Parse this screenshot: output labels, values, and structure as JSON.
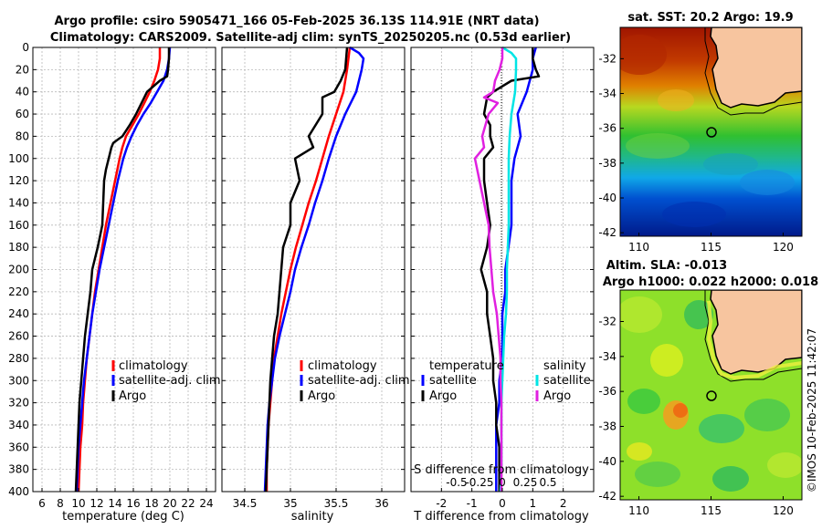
{
  "header": {
    "title_line1": "Argo profile: csiro 5905471_166 05-Feb-2025 36.13S 114.91E (NRT data)",
    "title_line2": "Climatology: CARS2009. Satellite-adj clim: synTS_20250205.nc (0.53d earlier)"
  },
  "footer": {
    "credit": "©IMOS 10-Feb-2025 11:42:07"
  },
  "colors": {
    "climatology": "#ff0000",
    "satellite": "#0000ff",
    "argo": "#000000",
    "sat_salinity": "#00e5e5",
    "argo_salinity": "#e020e0",
    "grid": "#b0b0b0",
    "land": "#f7c59f"
  },
  "chart_data": [
    {
      "id": "temperature",
      "type": "line",
      "xlabel": "temperature (deg C)",
      "ylabel": "",
      "xlim": [
        5,
        25
      ],
      "ylim": [
        400,
        0
      ],
      "xticks": [
        6,
        8,
        10,
        12,
        14,
        16,
        18,
        20,
        22,
        24
      ],
      "yticks": [
        0,
        20,
        40,
        60,
        80,
        100,
        120,
        140,
        160,
        180,
        200,
        220,
        240,
        260,
        280,
        300,
        320,
        340,
        360,
        380,
        400
      ],
      "legend": {
        "position": "lower-right",
        "entries": [
          "climatology",
          "satellite-adj. clim",
          "Argo"
        ]
      },
      "series": [
        {
          "name": "climatology",
          "color": "#ff0000",
          "depth": [
            0,
            10,
            20,
            30,
            40,
            50,
            60,
            70,
            80,
            90,
            100,
            120,
            140,
            160,
            180,
            200,
            220,
            240,
            260,
            280,
            300,
            320,
            340,
            360,
            380,
            400
          ],
          "values": [
            18.9,
            18.9,
            18.7,
            18.3,
            17.8,
            17.2,
            16.6,
            15.9,
            15.2,
            14.8,
            14.5,
            14.0,
            13.5,
            13.0,
            12.6,
            12.2,
            11.8,
            11.5,
            11.2,
            10.9,
            10.7,
            10.5,
            10.4,
            10.2,
            10.1,
            10.0
          ]
        },
        {
          "name": "satellite-adj. clim",
          "color": "#0000ff",
          "depth": [
            0,
            10,
            20,
            30,
            40,
            50,
            60,
            70,
            80,
            90,
            100,
            120,
            140,
            160,
            180,
            200,
            220,
            240,
            260,
            280,
            300,
            320,
            340,
            360,
            380,
            400
          ],
          "values": [
            20.0,
            19.9,
            19.7,
            19.3,
            18.6,
            17.9,
            17.1,
            16.4,
            15.8,
            15.3,
            14.9,
            14.3,
            13.8,
            13.3,
            12.8,
            12.3,
            11.9,
            11.5,
            11.2,
            10.9,
            10.6,
            10.4,
            10.2,
            10.0,
            9.9,
            9.8
          ]
        },
        {
          "name": "Argo",
          "color": "#000000",
          "depth": [
            0,
            10,
            20,
            26,
            30,
            40,
            50,
            60,
            70,
            80,
            86,
            90,
            100,
            110,
            120,
            140,
            160,
            180,
            200,
            220,
            240,
            260,
            280,
            300,
            320,
            340,
            360,
            380,
            400
          ],
          "values": [
            19.9,
            19.9,
            19.8,
            19.7,
            18.9,
            17.5,
            16.9,
            16.3,
            15.6,
            14.8,
            13.8,
            13.6,
            13.3,
            13.0,
            12.8,
            12.7,
            12.6,
            12.1,
            11.5,
            11.3,
            11.0,
            10.7,
            10.5,
            10.3,
            10.1,
            10.0,
            9.9,
            9.8,
            9.7
          ]
        }
      ]
    },
    {
      "id": "salinity",
      "type": "line",
      "xlabel": "salinity",
      "ylabel": "",
      "xlim": [
        34.25,
        36.25
      ],
      "ylim": [
        400,
        0
      ],
      "xticks": [
        34.5,
        35,
        35.5,
        36
      ],
      "yticks": [
        0,
        20,
        40,
        60,
        80,
        100,
        120,
        140,
        160,
        180,
        200,
        220,
        240,
        260,
        280,
        300,
        320,
        340,
        360,
        380,
        400
      ],
      "legend": {
        "position": "lower-right",
        "entries": [
          "climatology",
          "satellite-adj. clim",
          "Argo"
        ]
      },
      "series": [
        {
          "name": "climatology",
          "color": "#ff0000",
          "depth": [
            0,
            20,
            40,
            60,
            80,
            100,
            120,
            140,
            160,
            180,
            200,
            220,
            240,
            260,
            280,
            300,
            320,
            340,
            360,
            380,
            400
          ],
          "values": [
            35.65,
            35.62,
            35.58,
            35.5,
            35.42,
            35.35,
            35.28,
            35.2,
            35.13,
            35.06,
            35.0,
            34.95,
            34.9,
            34.86,
            34.82,
            34.8,
            34.78,
            34.76,
            34.75,
            34.74,
            34.74
          ]
        },
        {
          "name": "satellite-adj. clim",
          "color": "#0000ff",
          "depth": [
            0,
            5,
            10,
            20,
            40,
            60,
            80,
            100,
            120,
            140,
            160,
            180,
            200,
            220,
            240,
            260,
            280,
            300,
            320,
            340,
            360,
            380,
            400
          ],
          "values": [
            35.65,
            35.75,
            35.8,
            35.78,
            35.72,
            35.6,
            35.5,
            35.42,
            35.35,
            35.27,
            35.2,
            35.12,
            35.05,
            35.0,
            34.94,
            34.88,
            34.83,
            34.8,
            34.77,
            34.75,
            34.74,
            34.73,
            34.72
          ]
        },
        {
          "name": "Argo",
          "color": "#000000",
          "depth": [
            0,
            20,
            30,
            40,
            45,
            60,
            80,
            90,
            100,
            120,
            140,
            160,
            180,
            200,
            220,
            240,
            260,
            280,
            300,
            320,
            340,
            360,
            380,
            400
          ],
          "values": [
            35.62,
            35.6,
            35.55,
            35.48,
            35.35,
            35.35,
            35.2,
            35.25,
            35.05,
            35.1,
            35.0,
            35.0,
            34.92,
            34.9,
            34.88,
            34.86,
            34.82,
            34.8,
            34.78,
            34.77,
            34.76,
            34.75,
            34.74,
            34.73
          ]
        }
      ]
    },
    {
      "id": "difference",
      "type": "line",
      "xlabel": "T difference from climatology",
      "top_axis_label": "S difference from climatology",
      "xlim": [
        -3,
        3
      ],
      "ylim": [
        400,
        0
      ],
      "xticks": [
        -2,
        -1,
        0,
        1,
        2
      ],
      "xticklabels": [
        "-2",
        "-1",
        "0",
        "1",
        "2"
      ],
      "top_xticks": [
        -0.5,
        -0.25,
        0,
        0.25,
        0.5
      ],
      "top_xticklabels": [
        "-0.5",
        "-0.25",
        "0",
        "0.25",
        "0.5"
      ],
      "top_xlim": [
        -1.0,
        1.0
      ],
      "yticks": [
        0,
        20,
        40,
        60,
        80,
        100,
        120,
        140,
        160,
        180,
        200,
        220,
        240,
        260,
        280,
        300,
        320,
        340,
        360,
        380,
        400
      ],
      "legend": {
        "position": "lower",
        "temperature_header": "temperature",
        "salinity_header": "salinity",
        "temperature_entries": [
          "satellite",
          "Argo"
        ],
        "salinity_entries": [
          "satellite",
          "Argo"
        ]
      },
      "series": [
        {
          "name": "T satellite",
          "color": "#0000ff",
          "axis": "T",
          "depth": [
            0,
            10,
            20,
            40,
            60,
            80,
            100,
            120,
            140,
            160,
            180,
            200,
            220,
            240,
            260,
            280,
            300,
            320,
            340,
            360,
            380,
            400
          ],
          "values": [
            1.1,
            1.0,
            1.0,
            0.8,
            0.5,
            0.6,
            0.4,
            0.3,
            0.3,
            0.3,
            0.2,
            0.1,
            0.1,
            0.0,
            0.0,
            0.0,
            -0.1,
            -0.1,
            -0.2,
            -0.2,
            -0.2,
            -0.2
          ]
        },
        {
          "name": "T Argo",
          "color": "#000000",
          "axis": "T",
          "depth": [
            0,
            10,
            20,
            26,
            30,
            40,
            45,
            60,
            70,
            80,
            90,
            100,
            120,
            140,
            160,
            180,
            200,
            220,
            240,
            260,
            280,
            300,
            320,
            340,
            360,
            380,
            400
          ],
          "values": [
            1.0,
            1.0,
            1.1,
            1.2,
            0.3,
            -0.3,
            -0.5,
            -0.6,
            -0.4,
            -0.4,
            -0.3,
            -0.6,
            -0.6,
            -0.5,
            -0.4,
            -0.5,
            -0.7,
            -0.5,
            -0.5,
            -0.4,
            -0.3,
            -0.3,
            -0.2,
            -0.2,
            -0.1,
            -0.1,
            -0.1
          ]
        },
        {
          "name": "S satellite",
          "color": "#00e5e5",
          "axis": "S",
          "depth": [
            0,
            5,
            10,
            20,
            40,
            60,
            80,
            100,
            120,
            140,
            160,
            180,
            200,
            220,
            240,
            260,
            280,
            300,
            320,
            340,
            360,
            380,
            400
          ],
          "values": [
            0.0,
            0.1,
            0.15,
            0.15,
            0.14,
            0.1,
            0.08,
            0.07,
            0.07,
            0.07,
            0.07,
            0.06,
            0.05,
            0.05,
            0.04,
            0.02,
            0.01,
            0.0,
            -0.01,
            -0.01,
            -0.01,
            -0.01,
            -0.02
          ]
        },
        {
          "name": "S Argo",
          "color": "#e020e0",
          "axis": "S",
          "depth": [
            0,
            10,
            20,
            30,
            40,
            45,
            50,
            60,
            80,
            90,
            100,
            120,
            140,
            160,
            180,
            200,
            220,
            240,
            260,
            280,
            300,
            320,
            340,
            360,
            380,
            400
          ],
          "values": [
            0.0,
            0.0,
            -0.03,
            -0.08,
            -0.1,
            -0.2,
            -0.05,
            -0.15,
            -0.22,
            -0.2,
            -0.3,
            -0.25,
            -0.2,
            -0.15,
            -0.14,
            -0.12,
            -0.1,
            -0.06,
            -0.04,
            -0.02,
            -0.02,
            -0.01,
            -0.01,
            -0.01,
            -0.01,
            -0.01
          ]
        }
      ]
    },
    {
      "id": "sst_map",
      "type": "heatmap",
      "title": "sat. SST: 20.2 Argo: 19.9",
      "xlim": [
        108.7,
        121.3
      ],
      "ylim": [
        -42.2,
        -30.2
      ],
      "xticks": [
        110,
        115,
        120
      ],
      "yticks": [
        -32,
        -34,
        -36,
        -38,
        -40,
        -42
      ],
      "marker": {
        "lon": 114.91,
        "lat": -36.13
      }
    },
    {
      "id": "sla_map",
      "type": "heatmap",
      "title_line1": "Altim. SLA: -0.013",
      "title_line2": "Argo h1000: 0.022 h2000: 0.018",
      "xlim": [
        108.7,
        121.3
      ],
      "ylim": [
        -42.2,
        -30.2
      ],
      "xticks": [
        110,
        115,
        120
      ],
      "yticks": [
        -32,
        -34,
        -36,
        -38,
        -40,
        -42
      ],
      "marker": {
        "lon": 114.91,
        "lat": -36.13
      }
    }
  ]
}
